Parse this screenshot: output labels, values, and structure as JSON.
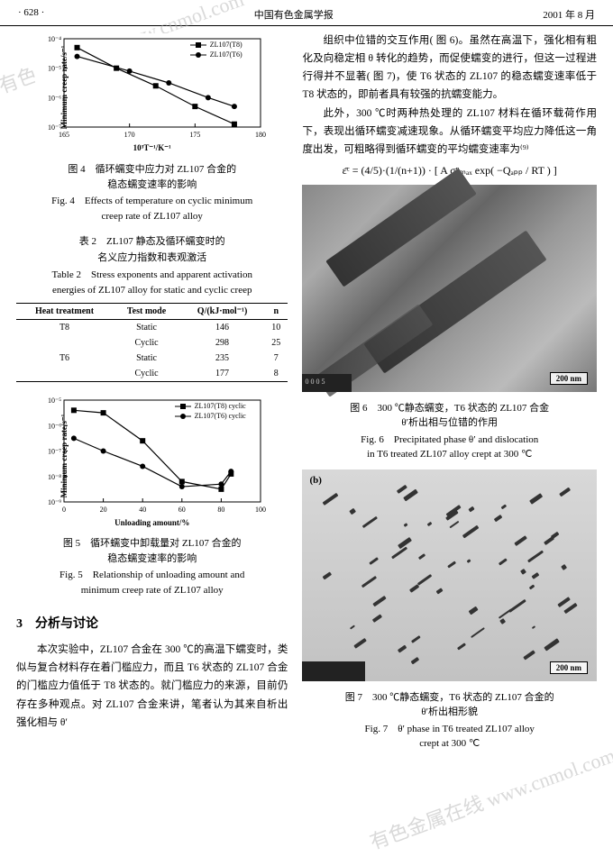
{
  "header": {
    "page": "· 628 ·",
    "journal": "中国有色金属学报",
    "date": "2001 年 8 月"
  },
  "watermark_text": "有色金属在线\nwww.cnmol.com",
  "fig4": {
    "type": "line",
    "caption_cn": "图 4　循环蠕变中应力对 ZL107 合金的\n稳态蠕变速率的影响",
    "caption_en": "Fig. 4　Effects of temperature on cyclic minimum\ncreep rate of ZL107 alloy",
    "ylabel": "Minimum creep rate/s⁻¹",
    "xlabel": "10³T⁻¹/K⁻¹",
    "xlim": [
      165,
      180
    ],
    "ylim_exp": [
      -7,
      -4
    ],
    "xticks": [
      165,
      170,
      175,
      180
    ],
    "yticks": [
      "10⁻⁷",
      "10⁻⁶",
      "10⁻⁵",
      "10⁻⁴"
    ],
    "series": [
      {
        "name": "ZL107(T8)",
        "marker": "square",
        "color": "#000000",
        "x": [
          166,
          169,
          172,
          175,
          178
        ],
        "y_exp": [
          -4.3,
          -5.0,
          -5.6,
          -6.3,
          -6.9
        ]
      },
      {
        "name": "ZL107(T6)",
        "marker": "circle",
        "color": "#000000",
        "x": [
          166,
          170,
          173,
          176,
          178
        ],
        "y_exp": [
          -4.6,
          -5.1,
          -5.5,
          -6.0,
          -6.3
        ]
      }
    ],
    "background_color": "#ffffff"
  },
  "table2": {
    "title_cn": "表 2　ZL107 静态及循环蠕变时的\n名义应力指数和表观激活",
    "title_en": "Table 2　Stress exponents and apparent activation\nenergies of ZL107 alloy for static and cyclic creep",
    "columns": [
      "Heat treatment",
      "Test mode",
      "Q/(kJ·mol⁻¹)",
      "n"
    ],
    "rows": [
      [
        "T8",
        "Static",
        "146",
        "10"
      ],
      [
        "",
        "Cyclic",
        "298",
        "25"
      ],
      [
        "T6",
        "Static",
        "235",
        "7"
      ],
      [
        "",
        "Cyclic",
        "177",
        "8"
      ]
    ]
  },
  "fig5": {
    "type": "line",
    "caption_cn": "图 5　循环蠕变中卸载量对 ZL107 合金的\n稳态蠕变速率的影响",
    "caption_en": "Fig. 5　Relationship of unloading amount and\nminimum creep rate of ZL107 alloy",
    "ylabel": "Minimum creep rate/s⁻¹",
    "xlabel": "Unloading amount/%",
    "xlim": [
      0,
      100
    ],
    "ylim_exp": [
      -9,
      -5
    ],
    "xticks": [
      0,
      20,
      40,
      60,
      80,
      100
    ],
    "yticks": [
      "10⁻⁹",
      "10⁻⁸",
      "10⁻⁷",
      "10⁻⁶",
      "10⁻⁵"
    ],
    "series": [
      {
        "name": "ZL107(T8) cyclic",
        "marker": "square",
        "color": "#000000",
        "x": [
          5,
          20,
          40,
          60,
          80,
          85
        ],
        "y_exp": [
          -5.4,
          -5.5,
          -6.6,
          -8.2,
          -8.5,
          -7.9
        ]
      },
      {
        "name": "ZL107(T6) cyclic",
        "marker": "circle",
        "color": "#000000",
        "x": [
          5,
          20,
          40,
          60,
          80,
          85
        ],
        "y_exp": [
          -6.5,
          -7.0,
          -7.6,
          -8.4,
          -8.3,
          -7.8
        ]
      }
    ],
    "background_color": "#ffffff"
  },
  "section3": {
    "heading": "3　分析与讨论",
    "para_l": "本次实验中，ZL107 合金在 300 ℃的高温下蠕变时，类似与复合材料存在着门槛应力，而且 T6 状态的 ZL107 合金的门槛应力值低于 T8 状态的。就门槛应力的来源，目前仍存在多种观点。对 ZL107 合金来讲，笔者认为其来自析出强化相与 θ′"
  },
  "right": {
    "para1": "组织中位错的交互作用( 图 6)。虽然在高温下，强化相有粗化及向稳定相 θ 转化的趋势，而促使蠕变的进行，但这一过程进行得并不显著( 图 7)，使 T6 状态的 ZL107 的稳态蠕变速率低于 T8 状态的，即前者具有较强的抗蠕变能力。",
    "para2": "此外，300 ℃时两种热处理的 ZL107 材料在循环载荷作用下，表现出循环蠕变减速现象。从循环蠕变平均应力降低这一角度出发，可粗略得到循环蠕变的平均蠕变速率为⁽⁹⁾",
    "formula": "ε̄ᶜ = (4/5)·(1/(n+1)) · [ A σⁿₘₐₓ exp( −Qₐₚₚ / RT ) ]"
  },
  "fig6": {
    "caption_cn": "图 6　300 ℃静态蠕变，T6 状态的 ZL107 合金\nθ′析出相与位错的作用",
    "caption_en": "Fig. 6　Precipitated phase θ′ and dislocation\nin T6 treated ZL107 alloy crept at 300 ℃",
    "scale": "200 nm",
    "label_bl": "0 0 0 5"
  },
  "fig7": {
    "caption_cn": "图 7　300 ℃静态蠕变，T6 状态的 ZL107 合金的\nθ′析出相形貌",
    "caption_en": "Fig. 7　θ′ phase in T6 treated ZL107 alloy\ncrept at 300 ℃",
    "scale": "200 nm",
    "tag": "(b)"
  }
}
